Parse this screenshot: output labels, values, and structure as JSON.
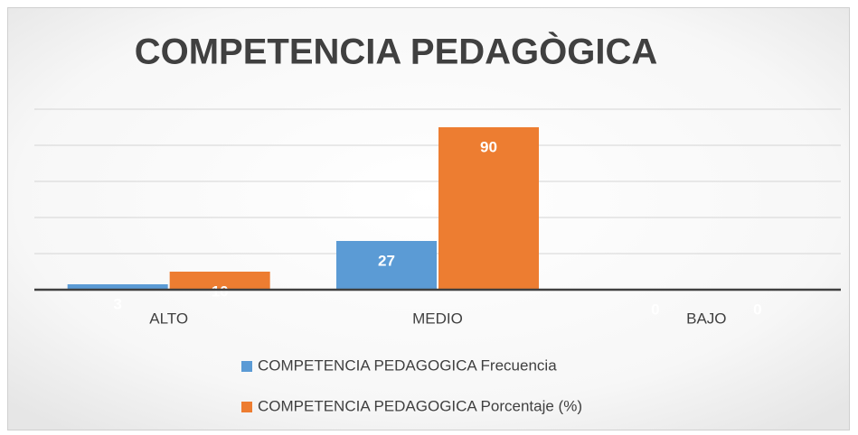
{
  "chart_data": {
    "type": "bar",
    "title": "COMPETENCIA PEDAGÒGICA",
    "categories": [
      "ALTO",
      "MEDIO",
      "BAJO"
    ],
    "series": [
      {
        "name": "COMPETENCIA PEDAGOGICA Frecuencia",
        "color": "#5b9bd5",
        "values": [
          3,
          27,
          0
        ]
      },
      {
        "name": "COMPETENCIA PEDAGOGICA Porcentaje (%)",
        "color": "#ed7d31",
        "values": [
          10,
          90,
          0
        ]
      }
    ],
    "ylim": [
      0,
      100
    ],
    "yticks": [
      0,
      20,
      40,
      60,
      80,
      100
    ],
    "grid": true,
    "legend": "bottom"
  }
}
